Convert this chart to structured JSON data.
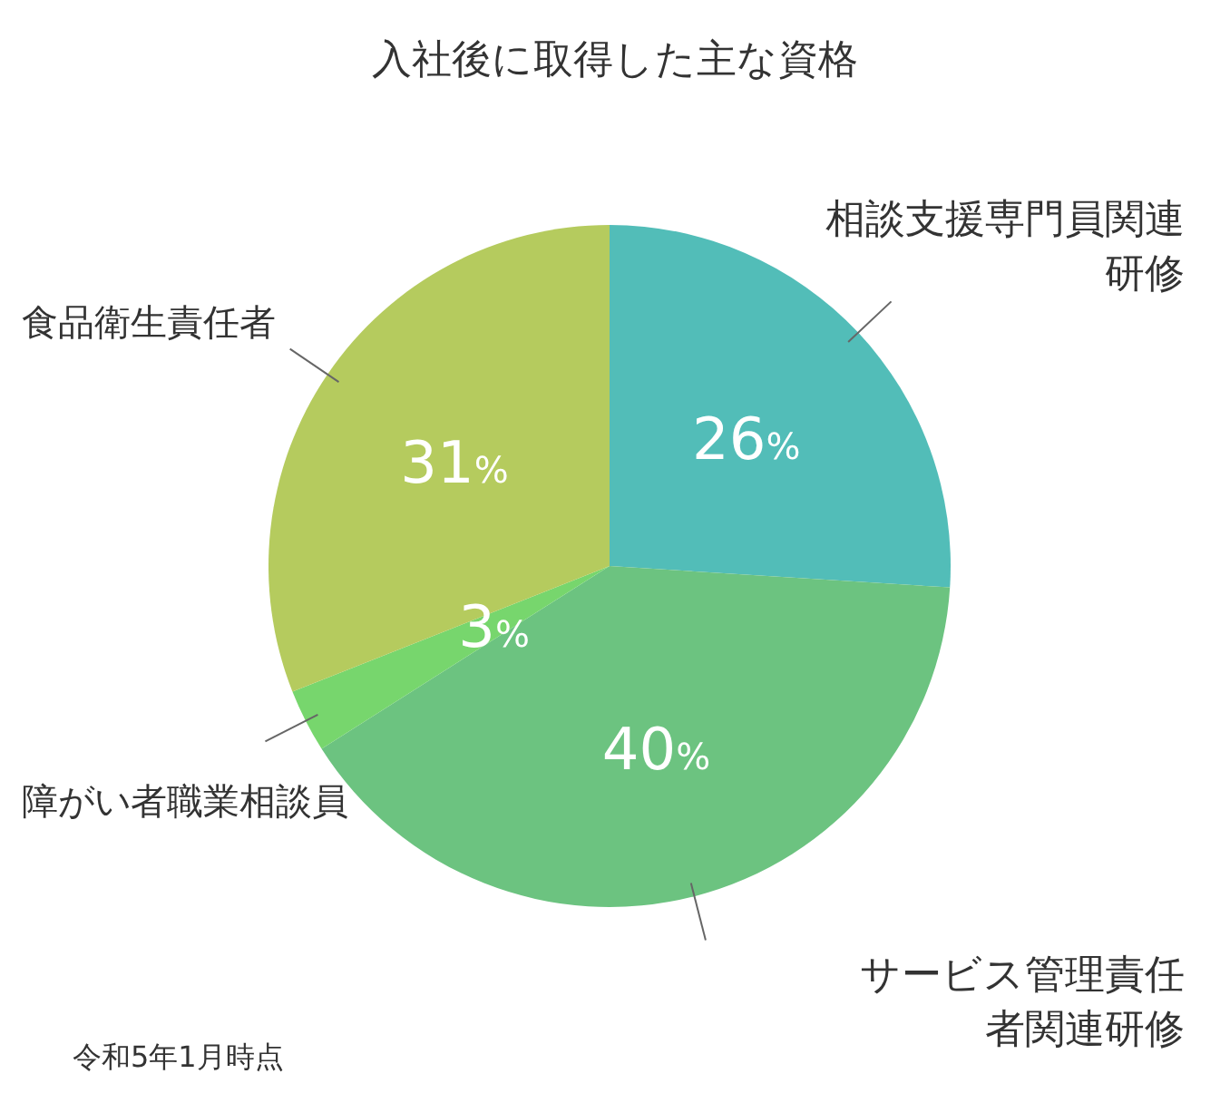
{
  "chart_data": {
    "type": "pie",
    "title": "入社後に取得した主な資格",
    "categories": [
      "相談支援専門員関連研修",
      "サービス管理責任者関連研修",
      "障がい者職業相談員",
      "食品衛生責任者"
    ],
    "values": [
      26,
      40,
      3,
      31
    ],
    "colors": [
      "#52bdb8",
      "#6cc380",
      "#77d66d",
      "#b5cb5e"
    ],
    "value_labels": [
      "26%",
      "40%",
      "3%",
      "31%"
    ],
    "annotations": [
      "令和5年1月時点"
    ]
  }
}
